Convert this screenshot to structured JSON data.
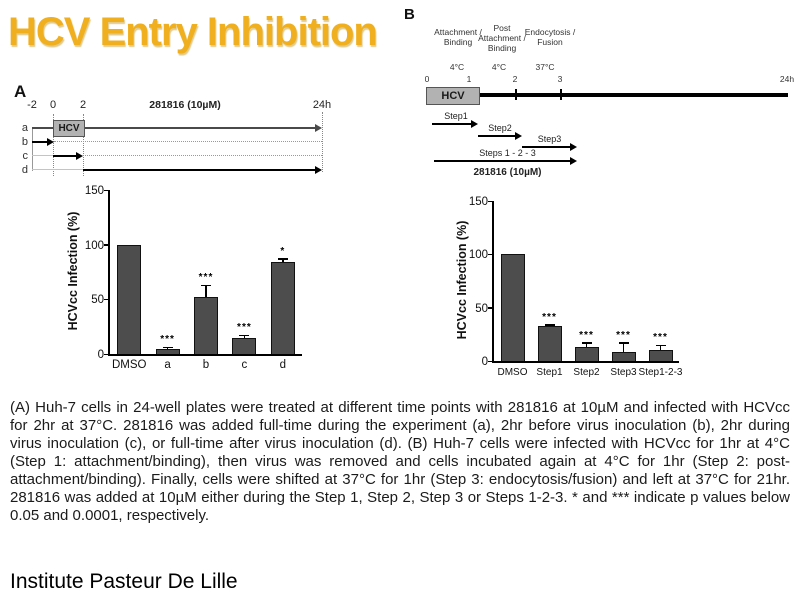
{
  "slide": {
    "title": "HCV Entry Inhibition",
    "footer": "Institute Pasteur De Lille",
    "caption": "(A) Huh-7 cells in 24-well plates were treated at different time points with 281816 at 10µM and infected with HCVcc for 2hr at 37°C. 281816 was added full-time during the experiment (a), 2hr before virus inoculation (b), 2hr during virus inoculation (c), or full-time after virus inoculation (d). (B) Huh-7 cells were infected with HCVcc for 1hr at 4°C (Step 1: attachment/binding), then virus was removed and cells incubated again at 4°C for 1hr (Step 2: post-attachment/binding). Finally, cells were shifted at 37°C for 1hr (Step 3: endocytosis/fusion) and left at 37°C for 21hr. 281816 was added at 10µM either during the Step 1, Step 2, Step 3 or Steps 1-2-3. * and *** indicate p values below 0.05 and 0.0001, respectively."
  },
  "panelA": {
    "label": "A",
    "ticks": [
      "-2",
      "0",
      "2",
      "24h"
    ],
    "drug": "281816 (10µM)",
    "hcv": "HCV",
    "rows": [
      "a",
      "b",
      "c",
      "d"
    ]
  },
  "panelB": {
    "label": "B",
    "phases": [
      {
        "name": "Attachment /\nBinding",
        "temp": "4°C"
      },
      {
        "name": "Post\nAttachment /\nBinding",
        "temp": "4°C"
      },
      {
        "name": "Endocytosis /\nFusion",
        "temp": "37°C"
      }
    ],
    "ticks": [
      "0",
      "1",
      "2",
      "3",
      "24h"
    ],
    "hcv": "HCV",
    "steps": [
      "Step1",
      "Step2",
      "Step3",
      "Steps 1 - 2 - 3"
    ],
    "drug": "281816 (10µM)"
  },
  "chart_data": [
    {
      "id": "chartA",
      "type": "bar",
      "title": "",
      "xlabel": "",
      "ylabel": "HCVcc Infection (%)",
      "categories": [
        "DMSO",
        "a",
        "b",
        "c",
        "d"
      ],
      "values": [
        100,
        5,
        52,
        15,
        84
      ],
      "errors": [
        0,
        1,
        11,
        2,
        3
      ],
      "significance": [
        "",
        "***",
        "***",
        "***",
        "*"
      ],
      "ylim": [
        0,
        150
      ],
      "yticks": [
        0,
        50,
        100,
        150
      ],
      "grid": false,
      "legend": "none"
    },
    {
      "id": "chartB",
      "type": "bar",
      "title": "",
      "xlabel": "",
      "ylabel": "HCVcc Infection (%)",
      "categories": [
        "DMSO",
        "Step1",
        "Step2",
        "Step3",
        "Step1-2-3"
      ],
      "values": [
        100,
        33,
        13,
        8,
        10
      ],
      "errors": [
        0,
        1,
        4,
        9,
        5
      ],
      "significance": [
        "",
        "***",
        "***",
        "***",
        "***"
      ],
      "ylim": [
        0,
        150
      ],
      "yticks": [
        0,
        50,
        100,
        150
      ],
      "grid": false,
      "legend": "none"
    }
  ],
  "colors": {
    "title_gold": "#F0AF1E",
    "bar_fill": "#4D4D4D",
    "axis": "#000000",
    "hcv_box": "#B2B2B2"
  }
}
